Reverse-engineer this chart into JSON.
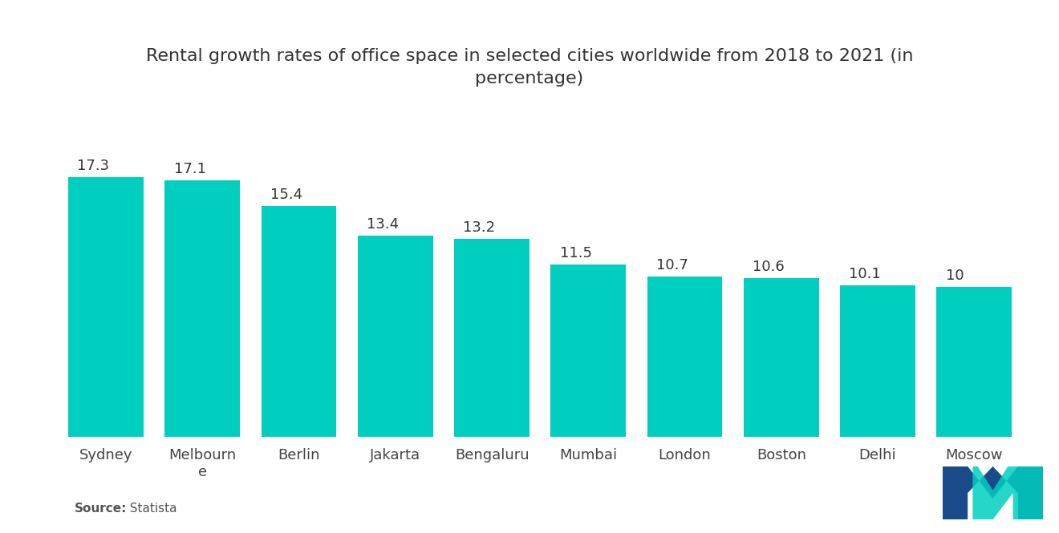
{
  "title": "Rental growth rates of office space in selected cities worldwide from 2018 to 2021 (in\npercentage)",
  "categories": [
    "Sydney",
    "Melbourn\ne",
    "Berlin",
    "Jakarta",
    "Bengaluru",
    "Mumbai",
    "London",
    "Boston",
    "Delhi",
    "Moscow"
  ],
  "values": [
    17.3,
    17.1,
    15.4,
    13.4,
    13.2,
    11.5,
    10.7,
    10.6,
    10.1,
    10.0
  ],
  "bar_color": "#00CFC0",
  "background_color": "#ffffff",
  "title_fontsize": 16,
  "label_fontsize": 13,
  "value_fontsize": 13,
  "source_label": "Source:",
  "source_value": "  Statista",
  "ylim": [
    0,
    22
  ],
  "bar_width": 0.78
}
